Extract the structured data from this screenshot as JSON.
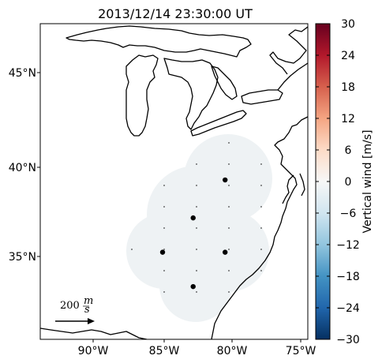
{
  "title": "2013/12/14 23:30:00 UT",
  "map": {
    "lon_ticks": [
      "90°W",
      "85°W",
      "80°W",
      "75°W"
    ],
    "lat_ticks": [
      "45°N",
      "40°N",
      "35°N"
    ],
    "scale_arrow_label": "200",
    "scale_arrow_unit_num": "m",
    "scale_arrow_unit_den": "s",
    "coverage_color": "#eef2f4",
    "radar_sites": [
      {
        "lon": -80.5,
        "lat": 39.3
      },
      {
        "lon": -82.8,
        "lat": 37.2
      },
      {
        "lon": -85.0,
        "lat": 35.3
      },
      {
        "lon": -80.5,
        "lat": 35.3
      },
      {
        "lon": -82.8,
        "lat": 33.4
      }
    ]
  },
  "colorbar": {
    "label": "Vertical wind [m/s]",
    "ticks": [
      "30",
      "24",
      "18",
      "12",
      "6",
      "0",
      "−6",
      "−12",
      "−18",
      "−24",
      "−30"
    ],
    "cmap": "RdBu_r",
    "range": [
      -30,
      30
    ],
    "colors": [
      "#67001f",
      "#b2182b",
      "#d6604d",
      "#f4a582",
      "#fddbc7",
      "#f7f7f7",
      "#d1e5f0",
      "#92c5de",
      "#4393c3",
      "#2166ac",
      "#053061"
    ]
  }
}
